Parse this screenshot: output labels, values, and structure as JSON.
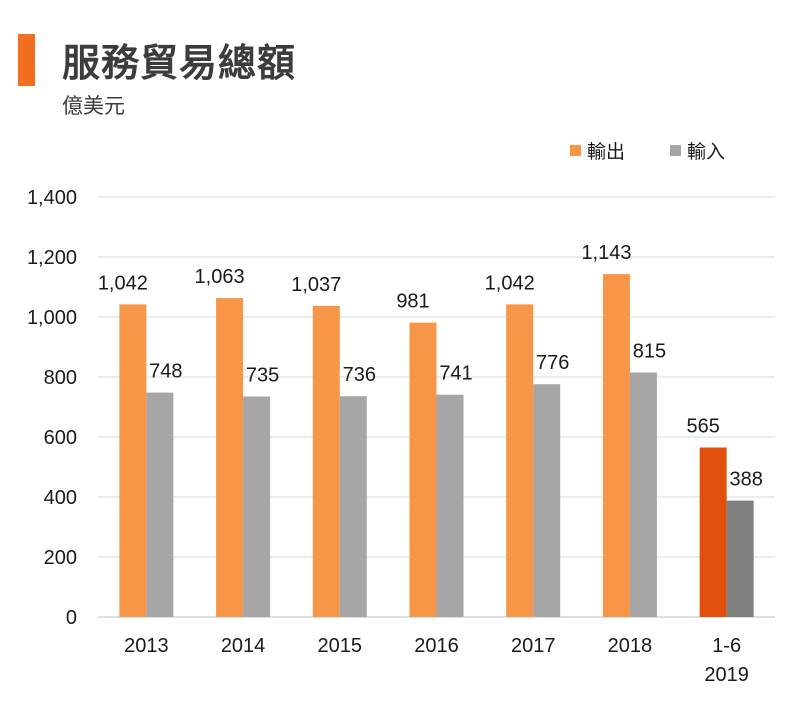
{
  "header": {
    "title": "服務貿易總額",
    "subtitle": "億美元"
  },
  "colors": {
    "accent": "#f26f21",
    "export": "#f79646",
    "import": "#a6a6a6",
    "export_highlight": "#e0500c",
    "import_highlight": "#7f7f7f",
    "grid": "#d9d9d9",
    "axis": "#bfbfbf"
  },
  "chart_data": {
    "type": "bar",
    "title": "服務貿易總額",
    "subtitle": "億美元",
    "xlabel": "",
    "ylabel": "",
    "categories": [
      [
        "2013"
      ],
      [
        "2014"
      ],
      [
        "2015"
      ],
      [
        "2016"
      ],
      [
        "2017"
      ],
      [
        "2018"
      ],
      [
        "1-6",
        "2019"
      ]
    ],
    "series": [
      {
        "name": "輸出",
        "values": [
          1042,
          1063,
          1037,
          981,
          1042,
          1143,
          565
        ],
        "labels": [
          "1,042",
          "1,063",
          "1,037",
          "981",
          "1,042",
          "1,143",
          "565"
        ]
      },
      {
        "name": "輸入",
        "values": [
          748,
          735,
          736,
          741,
          776,
          815,
          388
        ],
        "labels": [
          "748",
          "735",
          "736",
          "741",
          "776",
          "815",
          "388"
        ]
      }
    ],
    "highlight_category_index": 6,
    "ylim": [
      0,
      1400
    ],
    "yticks": [
      0,
      200,
      400,
      600,
      800,
      1000,
      1200,
      1400
    ],
    "ytick_labels": [
      "0",
      "200",
      "400",
      "600",
      "800",
      "1,000",
      "1,200",
      "1,400"
    ],
    "grid": true,
    "legend_position": "top-right"
  }
}
